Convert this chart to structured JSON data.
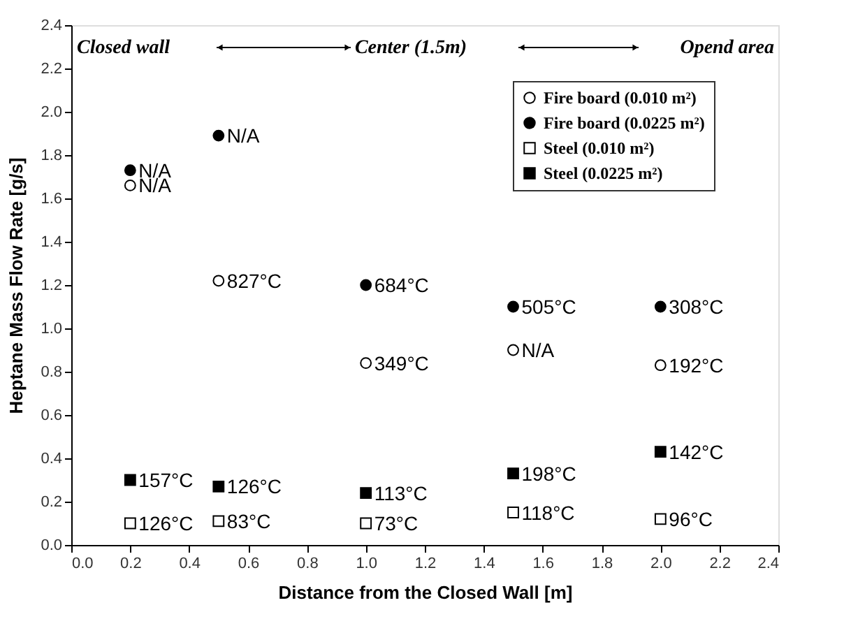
{
  "chart_data": {
    "type": "scatter",
    "xlabel": "Distance from the Closed Wall [m]",
    "ylabel": "Heptane Mass Flow Rate [g/s]",
    "x": [
      0.2,
      0.5,
      1.0,
      1.5,
      2.0
    ],
    "series": [
      {
        "name": "Fire board (0.010 m²)",
        "color": "#ffffff",
        "marker": "circle",
        "values": [
          1.66,
          1.22,
          0.84,
          0.9,
          0.83
        ]
      },
      {
        "name": "Fire board (0.0225 m²)",
        "color": "#000000",
        "marker": "circle",
        "values": [
          1.73,
          1.89,
          1.2,
          1.1,
          1.1
        ]
      },
      {
        "name": "Steel (0.010 m²)",
        "color": "#ffffff",
        "marker": "square",
        "values": [
          0.1,
          0.11,
          0.1,
          0.15,
          0.12
        ]
      },
      {
        "name": "Steel (0.0225 m²)",
        "color": "#000000",
        "marker": "square",
        "values": [
          0.3,
          0.27,
          0.24,
          0.33,
          0.43
        ]
      }
    ],
    "annotations": [
      "Closed wall",
      "Center (1.5m)",
      "Opend area",
      {
        "text": "N/A",
        "x": 0.2,
        "y": 1.66
      },
      {
        "text": "827°C",
        "x": 0.5,
        "y": 1.22
      },
      {
        "text": "349°C",
        "x": 1.0,
        "y": 0.84
      },
      {
        "text": "N/A",
        "x": 1.5,
        "y": 0.9
      },
      {
        "text": "192°C",
        "x": 2.0,
        "y": 0.83
      },
      {
        "text": "N/A",
        "x": 0.2,
        "y": 1.73
      },
      {
        "text": "N/A",
        "x": 0.5,
        "y": 1.89
      },
      {
        "text": "684°C",
        "x": 1.0,
        "y": 1.2
      },
      {
        "text": "505°C",
        "x": 1.5,
        "y": 1.1
      },
      {
        "text": "308°C",
        "x": 2.0,
        "y": 1.1
      },
      {
        "text": "126°C",
        "x": 0.2,
        "y": 0.1
      },
      {
        "text": "83°C",
        "x": 0.5,
        "y": 0.11
      },
      {
        "text": "73°C",
        "x": 1.0,
        "y": 0.1
      },
      {
        "text": "118°C",
        "x": 1.5,
        "y": 0.15
      },
      {
        "text": "96°C",
        "x": 2.0,
        "y": 0.12
      },
      {
        "text": "157°C",
        "x": 0.2,
        "y": 0.3
      },
      {
        "text": "126°C",
        "x": 0.5,
        "y": 0.27
      },
      {
        "text": "113°C",
        "x": 1.0,
        "y": 0.24
      },
      {
        "text": "198°C",
        "x": 1.5,
        "y": 0.33
      },
      {
        "text": "142°C",
        "x": 2.0,
        "y": 0.43
      }
    ],
    "xlim": [
      0,
      2.4
    ],
    "ylim": [
      0,
      2.4
    ],
    "xticks": [
      {
        "value": 0,
        "label": "0.0"
      },
      0.2,
      0.4,
      0.6,
      0.8,
      {
        "value": 1,
        "label": "1.0"
      },
      1.2,
      1.4,
      1.6,
      1.8,
      {
        "value": 2,
        "label": "2.0"
      },
      2.2,
      2.4
    ],
    "yticks": [
      {
        "value": 0,
        "label": "0.0"
      },
      0.2,
      0.4,
      0.6,
      0.8,
      {
        "value": 1,
        "label": "1.0"
      },
      1.2,
      1.4,
      1.6,
      1.8,
      {
        "value": 2,
        "label": "2.0"
      },
      2.2,
      2.4
    ],
    "grid": false,
    "legend": "top right"
  }
}
